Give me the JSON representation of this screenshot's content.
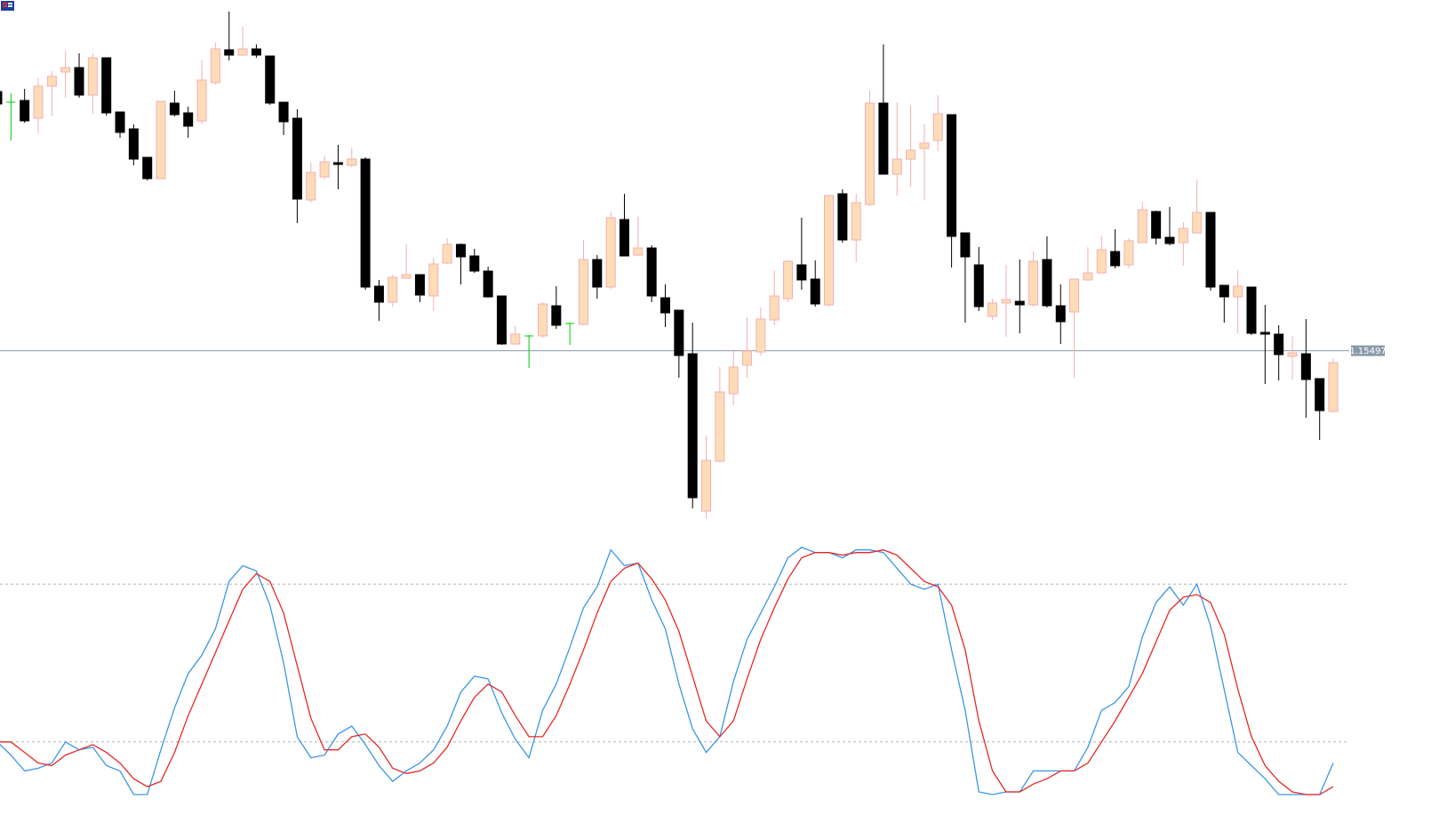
{
  "chart_data": [
    {
      "type": "candlestick",
      "ylim": [
        1.1452,
        1.1747
      ],
      "price_line": 1.15497,
      "up_color": "#ffdcb8",
      "up_border": "#f0b0b0",
      "down_color": "#000000",
      "doji_color": "#00cc00",
      "price_line_color": "#8a9aa8",
      "open": [
        1.16955,
        1.16895,
        1.16905,
        1.16805,
        1.16985,
        1.17065,
        1.1709,
        1.16935,
        1.17145,
        1.1684,
        1.16745,
        1.16585,
        1.16465,
        1.1689,
        1.16835,
        1.1679,
        1.17005,
        1.1719,
        1.1716,
        1.17195,
        1.17155,
        1.16895,
        1.16805,
        1.16345,
        1.16475,
        1.16555,
        1.1654,
        1.16575,
        1.1586,
        1.1577,
        1.15905,
        1.15925,
        1.15805,
        1.1599,
        1.16095,
        1.1603,
        1.15945,
        1.15805,
        1.15535,
        1.1558,
        1.1558,
        1.1575,
        1.1565,
        1.15645,
        1.1601,
        1.15855,
        1.16235,
        1.16035,
        1.16075,
        1.15795,
        1.15725,
        1.1548,
        1.14595,
        1.14875,
        1.15255,
        1.15415,
        1.1549,
        1.1567,
        1.1579,
        1.1598,
        1.159,
        1.15755,
        1.1638,
        1.1612,
        1.1632,
        1.1689,
        1.1649,
        1.16575,
        1.16635,
        1.1668,
        1.16825,
        1.1616,
        1.1598,
        1.1569,
        1.15765,
        1.15775,
        1.15755,
        1.1601,
        1.1575,
        1.15715,
        1.15895,
        1.15935,
        1.16055,
        1.1598,
        1.16105,
        1.1628,
        1.16135,
        1.16105,
        1.1616,
        1.16275,
        1.15865,
        1.158,
        1.15855,
        1.156,
        1.1559,
        1.15465,
        1.1548,
        1.1534,
        1.15155
      ],
      "high": [
        1.1697,
        1.16945,
        1.1697,
        1.1703,
        1.1707,
        1.17185,
        1.1717,
        1.1717,
        1.17145,
        1.1684,
        1.1677,
        1.16585,
        1.169,
        1.1696,
        1.1687,
        1.1713,
        1.1723,
        1.17405,
        1.1732,
        1.1722,
        1.17155,
        1.16895,
        1.16855,
        1.16555,
        1.16595,
        1.16655,
        1.1664,
        1.16585,
        1.15895,
        1.15925,
        1.16095,
        1.15925,
        1.1602,
        1.1613,
        1.161,
        1.1607,
        1.1597,
        1.15805,
        1.15635,
        1.15585,
        1.1577,
        1.1586,
        1.15655,
        1.1612,
        1.16035,
        1.1628,
        1.1638,
        1.1625,
        1.1609,
        1.1587,
        1.15725,
        1.15655,
        1.1502,
        1.15405,
        1.15495,
        1.15685,
        1.1574,
        1.1595,
        1.16005,
        1.16245,
        1.16005,
        1.16375,
        1.16405,
        1.1638,
        1.1696,
        1.1722,
        1.16895,
        1.16875,
        1.1677,
        1.16935,
        1.16825,
        1.1616,
        1.1608,
        1.1579,
        1.1598,
        1.1601,
        1.16055,
        1.1614,
        1.1587,
        1.159,
        1.1608,
        1.16145,
        1.1618,
        1.1613,
        1.16335,
        1.16285,
        1.16305,
        1.1622,
        1.1646,
        1.16275,
        1.15865,
        1.1595,
        1.15855,
        1.15755,
        1.1564,
        1.1558,
        1.15675,
        1.1534,
        1.15455
      ],
      "low": [
        1.1687,
        1.1668,
        1.1678,
        1.1672,
        1.1682,
        1.1692,
        1.1692,
        1.1683,
        1.1682,
        1.16695,
        1.1654,
        1.16455,
        1.16465,
        1.16815,
        1.16695,
        1.1677,
        1.16995,
        1.1713,
        1.1716,
        1.17145,
        1.1688,
        1.1671,
        1.16215,
        1.1633,
        1.1646,
        1.16405,
        1.1653,
        1.1584,
        1.15665,
        1.15745,
        1.15905,
        1.1577,
        1.1572,
        1.15985,
        1.1587,
        1.15935,
        1.15795,
        1.1553,
        1.1553,
        1.154,
        1.1557,
        1.1562,
        1.1553,
        1.1564,
        1.1579,
        1.15845,
        1.1603,
        1.1603,
        1.1577,
        1.1563,
        1.15345,
        1.1461,
        1.14555,
        1.1487,
        1.1519,
        1.15345,
        1.1547,
        1.1564,
        1.1577,
        1.1584,
        1.15745,
        1.15745,
        1.16105,
        1.15995,
        1.1631,
        1.1649,
        1.1637,
        1.1642,
        1.16345,
        1.1662,
        1.15965,
        1.15655,
        1.1572,
        1.1567,
        1.15575,
        1.15595,
        1.15745,
        1.1574,
        1.15535,
        1.15345,
        1.15895,
        1.15935,
        1.1596,
        1.1596,
        1.16105,
        1.16095,
        1.1609,
        1.15975,
        1.16155,
        1.15835,
        1.15655,
        1.15595,
        1.15585,
        1.1531,
        1.1533,
        1.15335,
        1.1512,
        1.14995,
        1.15155
      ],
      "close": [
        1.16885,
        1.16895,
        1.1679,
        1.16985,
        1.1704,
        1.1709,
        1.16935,
        1.17145,
        1.16835,
        1.16725,
        1.16575,
        1.16465,
        1.169,
        1.16825,
        1.1676,
        1.1702,
        1.17195,
        1.1716,
        1.17195,
        1.1716,
        1.1689,
        1.16785,
        1.1635,
        1.165,
        1.1656,
        1.16545,
        1.16575,
        1.15855,
        1.1577,
        1.1591,
        1.15925,
        1.1581,
        1.15985,
        1.16095,
        1.16025,
        1.15945,
        1.158,
        1.15535,
        1.1559,
        1.1558,
        1.1576,
        1.1564,
        1.1565,
        1.1601,
        1.15855,
        1.16245,
        1.1603,
        1.16075,
        1.15805,
        1.1571,
        1.1547,
        1.1467,
        1.1488,
        1.15265,
        1.15405,
        1.15495,
        1.15675,
        1.15805,
        1.16,
        1.15895,
        1.1576,
        1.1637,
        1.1612,
        1.1633,
        1.1689,
        1.1649,
        1.16575,
        1.16625,
        1.16665,
        1.1683,
        1.1614,
        1.16025,
        1.15745,
        1.15765,
        1.15785,
        1.15755,
        1.16,
        1.1575,
        1.1566,
        1.159,
        1.15935,
        1.16065,
        1.15975,
        1.16115,
        1.1629,
        1.1613,
        1.161,
        1.16185,
        1.16275,
        1.15855,
        1.158,
        1.1586,
        1.15595,
        1.1559,
        1.15475,
        1.15485,
        1.15335,
        1.1516,
        1.1543
      ]
    },
    {
      "type": "line",
      "ylim": [
        0,
        100
      ],
      "levels": [
        20,
        80
      ],
      "level_color": "#b4b4b4",
      "series": [
        {
          "color": "#3c96e6",
          "values": [
            20,
            15,
            9,
            10,
            12,
            20,
            17,
            18,
            11,
            9,
            0,
            0,
            17,
            33,
            46,
            53,
            63,
            81,
            87,
            85,
            72,
            50,
            22,
            14,
            15,
            23,
            26,
            19,
            11,
            5,
            9,
            12,
            17,
            26,
            39,
            45,
            44,
            31,
            21,
            14,
            32,
            42,
            56,
            71,
            79,
            93,
            87,
            88,
            74,
            63,
            42,
            25,
            16,
            22,
            43,
            59,
            69,
            79,
            90,
            94,
            92,
            92,
            90,
            93,
            93,
            92,
            86,
            80,
            78,
            80,
            55,
            32,
            1,
            0,
            1,
            1,
            9,
            9,
            9,
            9,
            18,
            32,
            35,
            41,
            60,
            73,
            79,
            72,
            80,
            64,
            40,
            16,
            11,
            6,
            0,
            0,
            0,
            0,
            12
          ]
        },
        {
          "color": "#e62828",
          "values": [
            20,
            20,
            16,
            12,
            11,
            15,
            17,
            19,
            16,
            12,
            6,
            3,
            5,
            16,
            30,
            42,
            54,
            66,
            78,
            84,
            81,
            69,
            49,
            29,
            17,
            17,
            22,
            23,
            18,
            10,
            8,
            9,
            12,
            18,
            28,
            37,
            42,
            39,
            30,
            22,
            22,
            30,
            42,
            55,
            69,
            81,
            86,
            88,
            82,
            74,
            62,
            45,
            28,
            22,
            28,
            44,
            59,
            71,
            82,
            90,
            92,
            92,
            91,
            92,
            92,
            93,
            91,
            86,
            81,
            79,
            72,
            55,
            28,
            9,
            1,
            1,
            4,
            6,
            9,
            9,
            12,
            20,
            28,
            37,
            46,
            58,
            70,
            75,
            76,
            73,
            61,
            40,
            22,
            11,
            5,
            1,
            0,
            0,
            3
          ]
        }
      ]
    }
  ]
}
